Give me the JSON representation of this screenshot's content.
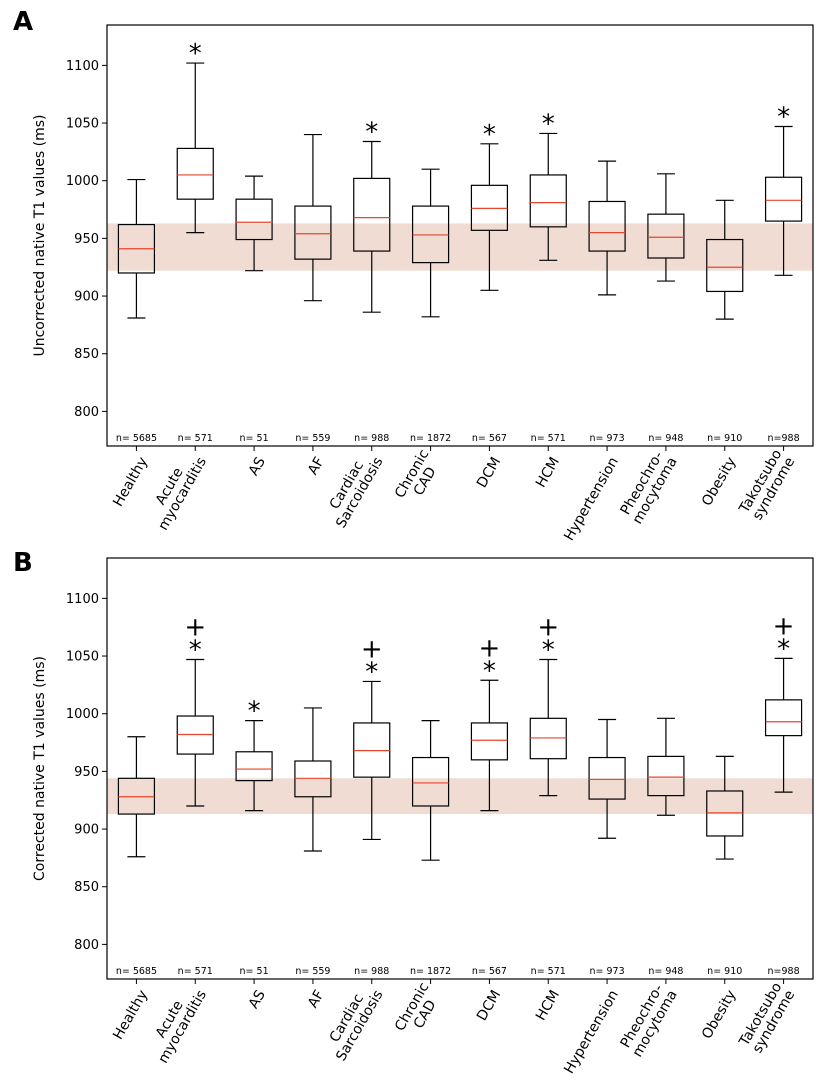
{
  "chart_data": [
    {
      "type": "box",
      "panel": "A",
      "ylabel": "Uncorrected native T1 values (ms)",
      "ylim": [
        770,
        1135
      ],
      "yticks": [
        800,
        850,
        900,
        950,
        1000,
        1050,
        1100
      ],
      "reference_band": [
        922,
        963
      ],
      "categories": [
        {
          "label": [
            "Healthy"
          ],
          "n": "n= 5685",
          "whislo": 881,
          "q1": 920,
          "med": 941,
          "q3": 962,
          "whishi": 1001,
          "markers": []
        },
        {
          "label": [
            "Acute",
            "myocarditis"
          ],
          "n": "n= 571",
          "whislo": 955,
          "q1": 984,
          "med": 1005,
          "q3": 1028,
          "whishi": 1102,
          "markers": [
            "*"
          ]
        },
        {
          "label": [
            "AS"
          ],
          "n": "n= 51",
          "whislo": 922,
          "q1": 949,
          "med": 964,
          "q3": 984,
          "whishi": 1004,
          "markers": []
        },
        {
          "label": [
            "AF"
          ],
          "n": "n= 559",
          "whislo": 896,
          "q1": 932,
          "med": 954,
          "q3": 978,
          "whishi": 1040,
          "markers": []
        },
        {
          "label": [
            "Cardiac",
            "Sarcoidosis"
          ],
          "n": "n= 988",
          "whislo": 886,
          "q1": 939,
          "med": 968,
          "q3": 1002,
          "whishi": 1034,
          "markers": [
            "*"
          ]
        },
        {
          "label": [
            "Chronic",
            "CAD"
          ],
          "n": "n= 1872",
          "whislo": 882,
          "q1": 929,
          "med": 953,
          "q3": 978,
          "whishi": 1010,
          "markers": []
        },
        {
          "label": [
            "DCM"
          ],
          "n": "n= 567",
          "whislo": 905,
          "q1": 957,
          "med": 976,
          "q3": 996,
          "whishi": 1032,
          "markers": [
            "*"
          ]
        },
        {
          "label": [
            "HCM"
          ],
          "n": "n= 571",
          "whislo": 931,
          "q1": 960,
          "med": 981,
          "q3": 1005,
          "whishi": 1041,
          "markers": [
            "*"
          ]
        },
        {
          "label": [
            "Hypertension"
          ],
          "n": "n= 973",
          "whislo": 901,
          "q1": 939,
          "med": 955,
          "q3": 982,
          "whishi": 1017,
          "markers": []
        },
        {
          "label": [
            "Pheochro-",
            "mocytoma"
          ],
          "n": "n= 948",
          "whislo": 913,
          "q1": 933,
          "med": 951,
          "q3": 971,
          "whishi": 1006,
          "markers": []
        },
        {
          "label": [
            "Obesity"
          ],
          "n": "n= 910",
          "whislo": 880,
          "q1": 904,
          "med": 925,
          "q3": 949,
          "whishi": 983,
          "markers": []
        },
        {
          "label": [
            "Takotsubo",
            "syndrome"
          ],
          "n": "n=988",
          "whislo": 918,
          "q1": 965,
          "med": 983,
          "q3": 1003,
          "whishi": 1047,
          "markers": [
            "*"
          ]
        }
      ]
    },
    {
      "type": "box",
      "panel": "B",
      "ylabel": "Corrected native T1 values (ms)",
      "ylim": [
        770,
        1135
      ],
      "yticks": [
        800,
        850,
        900,
        950,
        1000,
        1050,
        1100
      ],
      "reference_band": [
        913,
        944
      ],
      "categories": [
        {
          "label": [
            "Healthy"
          ],
          "n": "n= 5685",
          "whislo": 876,
          "q1": 913,
          "med": 928,
          "q3": 944,
          "whishi": 980,
          "markers": []
        },
        {
          "label": [
            "Acute",
            "myocarditis"
          ],
          "n": "n= 571",
          "whislo": 920,
          "q1": 965,
          "med": 982,
          "q3": 998,
          "whishi": 1047,
          "markers": [
            "*",
            "+"
          ]
        },
        {
          "label": [
            "AS"
          ],
          "n": "n= 51",
          "whislo": 916,
          "q1": 942,
          "med": 952,
          "q3": 967,
          "whishi": 994,
          "markers": [
            "*"
          ]
        },
        {
          "label": [
            "AF"
          ],
          "n": "n= 559",
          "whislo": 881,
          "q1": 928,
          "med": 944,
          "q3": 959,
          "whishi": 1005,
          "markers": []
        },
        {
          "label": [
            "Cardiac",
            "Sarcoidosis"
          ],
          "n": "n= 988",
          "whislo": 891,
          "q1": 945,
          "med": 968,
          "q3": 992,
          "whishi": 1028,
          "markers": [
            "*",
            "+"
          ]
        },
        {
          "label": [
            "Chronic",
            "CAD"
          ],
          "n": "n= 1872",
          "whislo": 873,
          "q1": 920,
          "med": 940,
          "q3": 962,
          "whishi": 994,
          "markers": []
        },
        {
          "label": [
            "DCM"
          ],
          "n": "n= 567",
          "whislo": 916,
          "q1": 960,
          "med": 977,
          "q3": 992,
          "whishi": 1029,
          "markers": [
            "*",
            "+"
          ]
        },
        {
          "label": [
            "HCM"
          ],
          "n": "n= 571",
          "whislo": 929,
          "q1": 961,
          "med": 979,
          "q3": 996,
          "whishi": 1047,
          "markers": [
            "*",
            "+"
          ]
        },
        {
          "label": [
            "Hypertension"
          ],
          "n": "n= 973",
          "whislo": 892,
          "q1": 926,
          "med": 943,
          "q3": 962,
          "whishi": 995,
          "markers": []
        },
        {
          "label": [
            "Pheochro-",
            "mocytoma"
          ],
          "n": "n= 948",
          "whislo": 912,
          "q1": 929,
          "med": 945,
          "q3": 963,
          "whishi": 996,
          "markers": []
        },
        {
          "label": [
            "Obesity"
          ],
          "n": "n= 910",
          "whislo": 874,
          "q1": 894,
          "med": 914,
          "q3": 933,
          "whishi": 963,
          "markers": []
        },
        {
          "label": [
            "Takotsubo",
            "syndrome"
          ],
          "n": "n=988",
          "whislo": 932,
          "q1": 981,
          "med": 993,
          "q3": 1012,
          "whishi": 1048,
          "markers": [
            "*",
            "+"
          ]
        }
      ]
    }
  ],
  "colors": {
    "band": "#f0dcd3",
    "median": "#e8462b",
    "box": "#000000"
  }
}
